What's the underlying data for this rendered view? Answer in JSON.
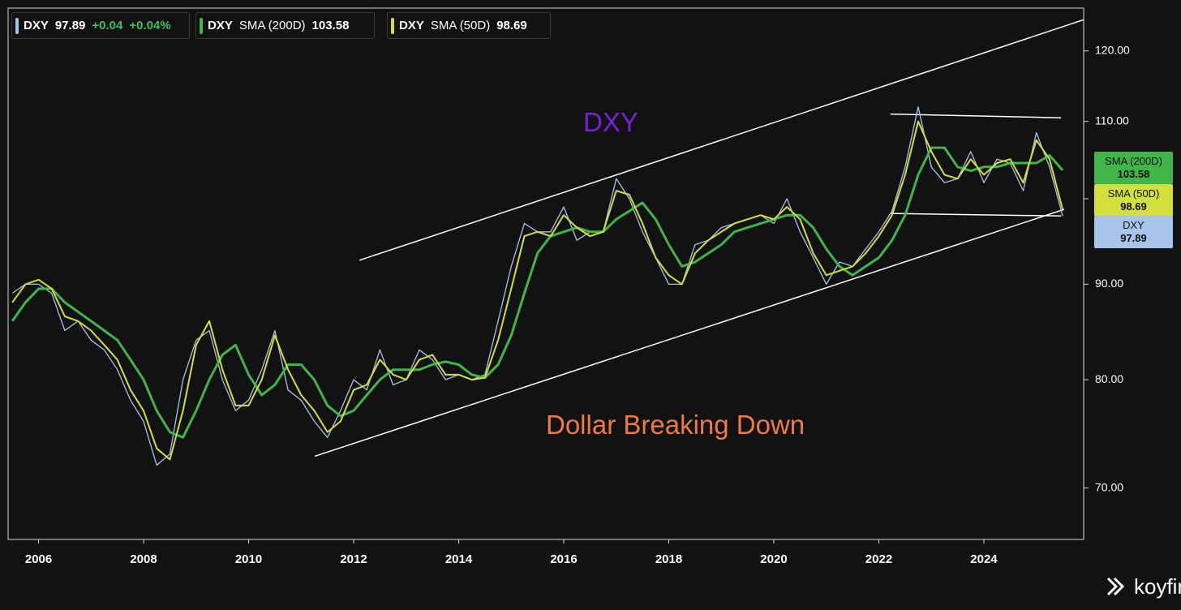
{
  "chart_data": {
    "type": "line",
    "log_scale": true,
    "xlim": [
      2005.42,
      2025.9
    ],
    "ylim": [
      65.7,
      126.5
    ],
    "xticks": [
      2006,
      2008,
      2010,
      2012,
      2014,
      2016,
      2018,
      2020,
      2022,
      2024
    ],
    "yticks": [
      {
        "value": 70,
        "label": "70.00"
      },
      {
        "value": 80,
        "label": "80.00"
      },
      {
        "value": 90,
        "label": "90.00"
      },
      {
        "value": 100,
        "label": "100.00"
      },
      {
        "value": 110,
        "label": "110.00"
      },
      {
        "value": 120,
        "label": "120.00"
      }
    ],
    "x": [
      2005.5,
      2005.75,
      2006,
      2006.25,
      2006.5,
      2006.75,
      2007,
      2007.25,
      2007.5,
      2007.75,
      2008,
      2008.25,
      2008.5,
      2008.75,
      2009,
      2009.25,
      2009.5,
      2009.75,
      2010,
      2010.25,
      2010.5,
      2010.75,
      2011,
      2011.25,
      2011.5,
      2011.75,
      2012,
      2012.25,
      2012.5,
      2012.75,
      2013,
      2013.25,
      2013.5,
      2013.75,
      2014,
      2014.25,
      2014.5,
      2014.75,
      2015,
      2015.25,
      2015.5,
      2015.75,
      2016,
      2016.25,
      2016.5,
      2016.75,
      2017,
      2017.25,
      2017.5,
      2017.75,
      2018,
      2018.25,
      2018.5,
      2018.75,
      2019,
      2019.25,
      2019.5,
      2019.75,
      2020,
      2020.25,
      2020.5,
      2020.75,
      2021,
      2021.25,
      2021.5,
      2021.75,
      2022,
      2022.25,
      2022.5,
      2022.75,
      2023,
      2023.25,
      2023.5,
      2023.75,
      2024,
      2024.25,
      2024.5,
      2024.75,
      2025,
      2025.25,
      2025.5
    ],
    "series": [
      {
        "name": "DXY",
        "color": "#a9c4eb",
        "width": 1.3,
        "change": "+0.04",
        "change_pct": "+0.04%",
        "values": [
          89,
          90,
          90,
          89,
          85,
          86,
          84,
          83,
          81,
          78,
          76,
          72,
          73,
          80,
          84,
          85,
          80,
          77,
          78,
          81,
          85,
          79,
          78,
          76,
          74.5,
          77,
          80,
          79,
          83,
          79.5,
          80,
          83,
          82,
          80,
          80.5,
          80,
          80.5,
          86,
          92,
          97,
          96,
          96,
          99,
          95,
          96,
          96,
          102.5,
          100,
          96,
          93,
          90,
          90,
          94.5,
          95,
          96.5,
          97,
          97.5,
          98,
          97,
          100,
          96,
          93,
          90,
          92.5,
          92,
          94,
          96,
          98.5,
          104,
          112,
          104,
          102,
          102.5,
          106,
          102,
          105,
          104.5,
          101,
          108.5,
          104,
          97.89
        ]
      },
      {
        "name": "SMA (200D)",
        "symbol": "DXY",
        "color": "#3fb54a",
        "width": 3,
        "values": [
          86,
          88,
          89.5,
          89.5,
          88,
          87,
          86,
          85,
          84,
          82,
          80,
          77,
          75,
          74.5,
          77,
          80,
          82.5,
          83.5,
          80.5,
          78.5,
          79.5,
          81.5,
          81.5,
          80,
          77.5,
          76.5,
          77,
          78.5,
          80,
          81,
          81,
          81,
          81.5,
          81.8,
          81.5,
          80.5,
          80.2,
          81.5,
          84.5,
          89,
          93.5,
          95.5,
          96,
          96.5,
          96,
          96,
          97.5,
          98.5,
          99.5,
          97.5,
          94.5,
          92,
          92.5,
          93.5,
          94.5,
          96,
          96.5,
          97,
          97.5,
          98,
          98,
          96.5,
          94,
          92,
          91,
          92,
          93,
          95,
          98,
          103,
          106.5,
          106.5,
          104,
          103.5,
          104,
          104,
          104.5,
          104.5,
          104.5,
          105.5,
          103.58
        ]
      },
      {
        "name": "SMA (50D)",
        "symbol": "DXY",
        "color": "#d3df3c",
        "width": 2,
        "values": [
          88,
          90,
          90.5,
          89.5,
          86.5,
          86,
          85,
          83.5,
          82,
          79,
          77,
          73.5,
          72.5,
          77,
          83.5,
          86,
          81,
          77.5,
          77.5,
          80,
          84.5,
          81,
          78.5,
          77,
          75,
          76,
          79,
          79.5,
          82,
          80.5,
          80,
          82,
          82.5,
          80.5,
          80.5,
          80,
          80.2,
          84,
          89.5,
          95.5,
          96,
          95.5,
          98,
          96.5,
          95.5,
          96,
          101,
          100.5,
          97,
          93,
          91,
          90,
          93.5,
          95,
          96,
          97,
          97.5,
          98,
          97.5,
          99,
          97.5,
          93.5,
          91,
          91.5,
          92,
          93.5,
          95.5,
          98,
          103,
          110,
          106,
          103,
          102.5,
          105,
          103,
          104.5,
          105,
          102,
          107.5,
          105,
          98.69
        ]
      }
    ],
    "trendlines": [
      {
        "color": "#ffffff",
        "x": [
          2012.11,
          2025.9
        ],
        "y": [
          92.7,
          124.7
        ]
      },
      {
        "color": "#ffffff",
        "x": [
          2011.26,
          2025.53
        ],
        "y": [
          72.8,
          98.7
        ]
      },
      {
        "color": "#ffffff",
        "x": [
          2022.22,
          2025.47
        ],
        "y": [
          111.0,
          110.5
        ]
      },
      {
        "color": "#ffffff",
        "x": [
          2022.22,
          2025.47
        ],
        "y": [
          98.2,
          97.9
        ]
      }
    ],
    "annotations": [
      {
        "text": "DXY",
        "color": "#7b1fe0"
      },
      {
        "text": "Dollar Breaking Down",
        "color": "#ee7a45"
      }
    ],
    "watermark": "koyfin"
  }
}
